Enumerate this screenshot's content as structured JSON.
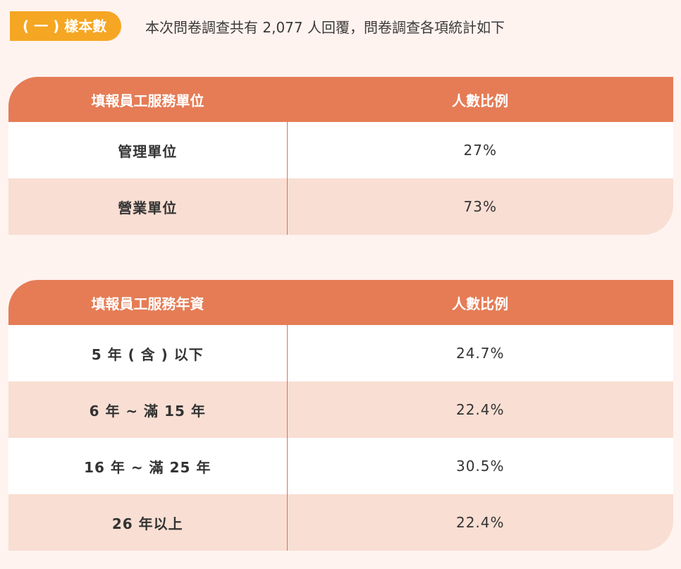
{
  "header": {
    "badge": "( 一 ) 樣本數",
    "intro": "本次問卷調查共有 2,077 人回覆，問卷調查各項統計如下"
  },
  "colors": {
    "background": "#fef3ef",
    "badge": "#f5a623",
    "table_header": "#e57c56",
    "row_alt": "#f9ded3",
    "divider": "#d9715a"
  },
  "table_unit": {
    "headers": [
      "填報員工服務單位",
      "人數比例"
    ],
    "rows": [
      {
        "label": "管理單位",
        "value": "27%"
      },
      {
        "label": "營業單位",
        "value": "73%"
      }
    ]
  },
  "table_tenure": {
    "headers": [
      "填報員工服務年資",
      "人數比例"
    ],
    "rows": [
      {
        "label": "5 年 ( 含 ) 以下",
        "value": "24.7%"
      },
      {
        "label": "6 年 ~ 滿 15 年",
        "value": "22.4%"
      },
      {
        "label": "16 年 ~ 滿 25 年",
        "value": "30.5%"
      },
      {
        "label": "26 年以上",
        "value": "22.4%"
      }
    ]
  }
}
